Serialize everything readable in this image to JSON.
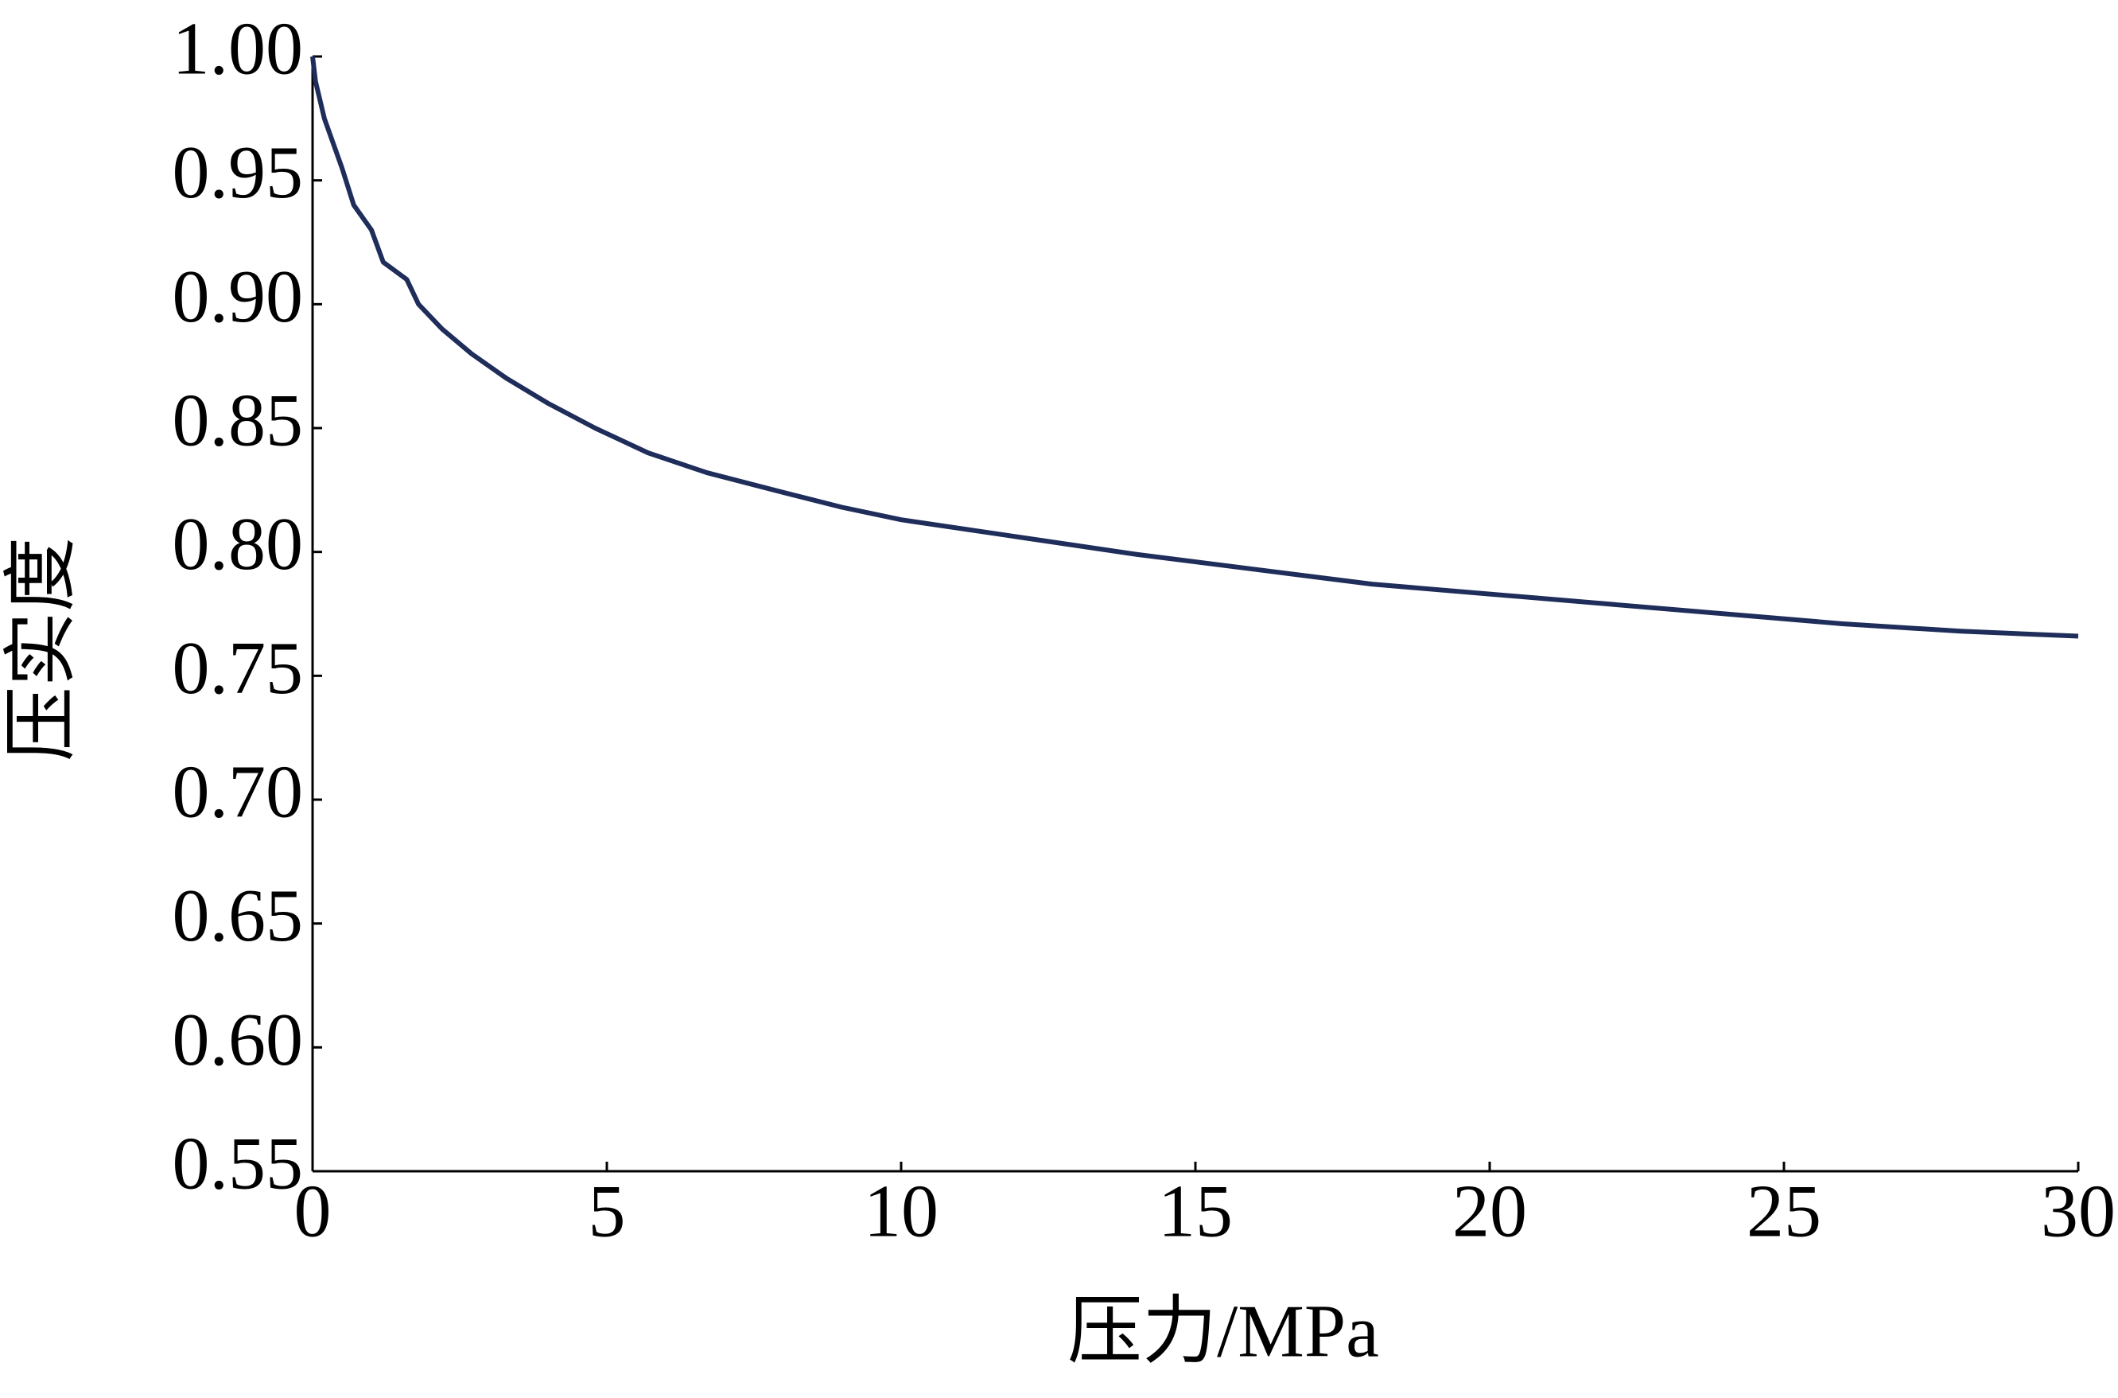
{
  "chart_data": {
    "type": "line",
    "x_label": "压力/MPa",
    "y_label": "压实度",
    "x": [
      0,
      0.05,
      0.2,
      0.35,
      0.5,
      0.7,
      1.0,
      1.2,
      1.6,
      1.8,
      2.2,
      2.7,
      3.3,
      4,
      4.8,
      5.7,
      6.7,
      8,
      9,
      10,
      12,
      14,
      16,
      18,
      20,
      22,
      24,
      26,
      28,
      30
    ],
    "series": [
      {
        "color": "#1f2d5a",
        "values": [
          1.0,
          0.99,
          0.975,
          0.965,
          0.955,
          0.94,
          0.93,
          0.917,
          0.91,
          0.9,
          0.89,
          0.88,
          0.87,
          0.86,
          0.85,
          0.84,
          0.832,
          0.824,
          0.818,
          0.813,
          0.806,
          0.799,
          0.793,
          0.787,
          0.783,
          0.779,
          0.775,
          0.771,
          0.768,
          0.766
        ]
      }
    ],
    "xlim": [
      0,
      30
    ],
    "xticks": [
      0,
      5,
      10,
      15,
      20,
      25,
      30
    ],
    "ylim": [
      0.55,
      1.0
    ],
    "yticks": [
      0.55,
      {
        "value": 0.6,
        "label": "0.60"
      },
      0.65,
      {
        "value": 0.7,
        "label": "0.70"
      },
      0.75,
      {
        "value": 0.8,
        "label": "0.80"
      },
      0.85,
      {
        "value": 0.9,
        "label": "0.90"
      },
      0.95,
      {
        "value": 1.0,
        "label": "1.00"
      }
    ],
    "grid": false
  }
}
